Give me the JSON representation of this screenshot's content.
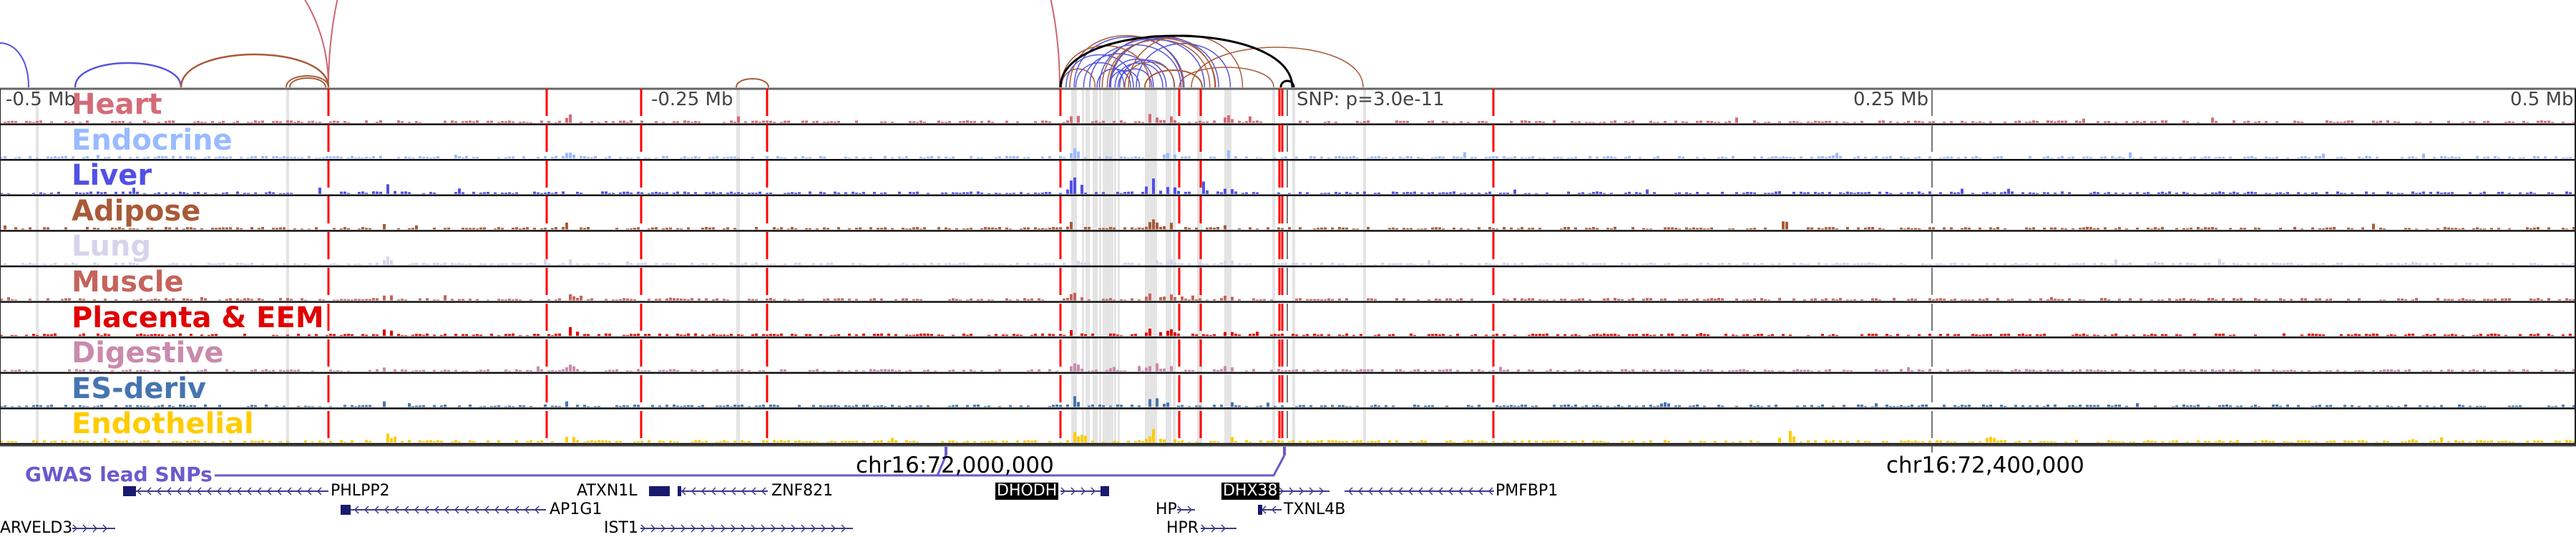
{
  "tracks": [
    {
      "label": "Heart",
      "color": "#d56b78"
    },
    {
      "label": "Endocrine",
      "color": "#99bbff"
    },
    {
      "label": "Liver",
      "color": "#5050e6"
    },
    {
      "label": "Adipose",
      "color": "#a85a38"
    },
    {
      "label": "Lung",
      "color": "#d8d3ec"
    },
    {
      "label": "Muscle",
      "color": "#c4645c"
    },
    {
      "label": "Placenta & EEM",
      "color": "#e00000"
    },
    {
      "label": "Digestive",
      "color": "#c98aac"
    },
    {
      "label": "ES-deriv",
      "color": "#4575b0"
    },
    {
      "label": "Endothelial",
      "color": "#ffcc00"
    }
  ],
  "axis": {
    "ticks": [
      "-0.5 Mb",
      "-0.25 Mb",
      "SNP: p=3.0e-11",
      "0.25 Mb",
      "0.5 Mb"
    ],
    "chr_labels": [
      "chr16:72,000,000",
      "chr16:72,400,000"
    ]
  },
  "gwas_label": "GWAS lead SNPs",
  "genes": [
    {
      "name": "PHLPP2",
      "strand": "-",
      "highlight": false
    },
    {
      "name": "ATXN1L",
      "strand": "+",
      "highlight": false
    },
    {
      "name": "ZNF821",
      "strand": "-",
      "highlight": false
    },
    {
      "name": "DHODH",
      "strand": "+",
      "highlight": true
    },
    {
      "name": "DHX38",
      "strand": "+",
      "highlight": true
    },
    {
      "name": "PMFBP1",
      "strand": "-",
      "highlight": false
    },
    {
      "name": "AP1G1",
      "strand": "-",
      "highlight": false
    },
    {
      "name": "HP",
      "strand": "+",
      "highlight": false
    },
    {
      "name": "TXNL4B",
      "strand": "-",
      "highlight": false
    },
    {
      "name": "ARVELD3",
      "strand": "+",
      "highlight": false
    },
    {
      "name": "IST1",
      "strand": "+",
      "highlight": false
    },
    {
      "name": "HPR",
      "strand": "+",
      "highlight": false
    }
  ],
  "colors": {
    "arc_blue": "#5555dd",
    "arc_brown": "#a85a38",
    "arc_red": "#cc6670",
    "snp_line": "#6a5acd",
    "gene": "#1a1a6e",
    "highlight": "#ff0000"
  }
}
